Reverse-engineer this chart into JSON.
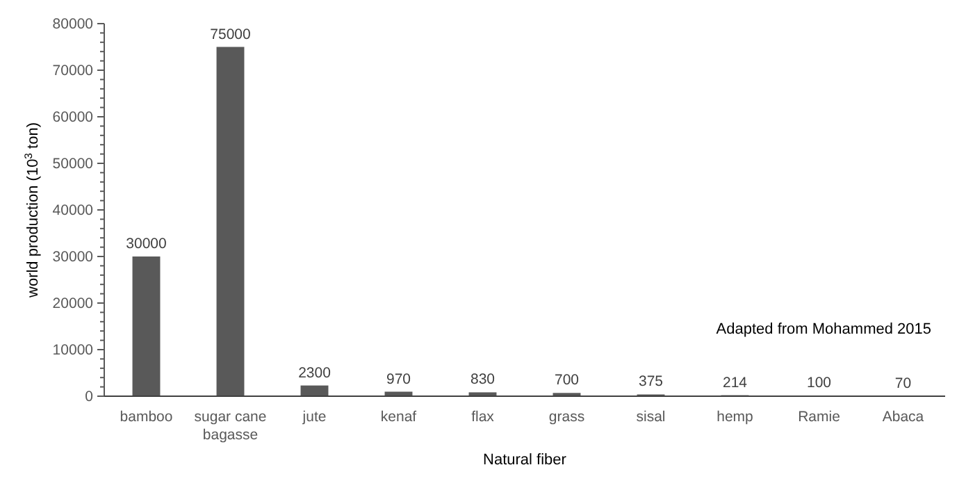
{
  "chart_data": {
    "type": "bar",
    "xlabel": "Natural fiber",
    "ylabel": "world production (10$^{3}$ ton)",
    "categories": [
      "bamboo",
      "sugar cane bagasse",
      "jute",
      "kenaf",
      "flax",
      "grass",
      "sisal",
      "hemp",
      "Ramie",
      "Abaca"
    ],
    "values": [
      30000,
      75000,
      2300,
      970,
      830,
      700,
      375,
      214,
      100,
      70
    ],
    "color": "#595959",
    "data_labels": true,
    "ylim": [
      0,
      80000
    ],
    "yticks": [
      0,
      {
        "value": 2000,
        "label": null
      },
      {
        "value": 4000,
        "label": null
      },
      {
        "value": 6000,
        "label": null
      },
      {
        "value": 8000,
        "label": null
      },
      10000,
      {
        "value": 12000,
        "label": null
      },
      {
        "value": 14000,
        "label": null
      },
      {
        "value": 16000,
        "label": null
      },
      {
        "value": 18000,
        "label": null
      },
      20000,
      {
        "value": 22000,
        "label": null
      },
      {
        "value": 24000,
        "label": null
      },
      {
        "value": 26000,
        "label": null
      },
      {
        "value": 28000,
        "label": null
      },
      30000,
      {
        "value": 32000,
        "label": null
      },
      {
        "value": 34000,
        "label": null
      },
      {
        "value": 36000,
        "label": null
      },
      {
        "value": 38000,
        "label": null
      },
      40000,
      {
        "value": 42000,
        "label": null
      },
      {
        "value": 44000,
        "label": null
      },
      {
        "value": 46000,
        "label": null
      },
      {
        "value": 48000,
        "label": null
      },
      50000,
      {
        "value": 52000,
        "label": null
      },
      {
        "value": 54000,
        "label": null
      },
      {
        "value": 56000,
        "label": null
      },
      {
        "value": 58000,
        "label": null
      },
      60000,
      {
        "value": 62000,
        "label": null
      },
      {
        "value": 64000,
        "label": null
      },
      {
        "value": 66000,
        "label": null
      },
      {
        "value": 68000,
        "label": null
      },
      70000,
      {
        "value": 72000,
        "label": null
      },
      {
        "value": 74000,
        "label": null
      },
      {
        "value": 76000,
        "label": null
      },
      {
        "value": 78000,
        "label": null
      },
      80000
    ],
    "annotations": [
      "Adapted from Mohammed 2015"
    ]
  }
}
